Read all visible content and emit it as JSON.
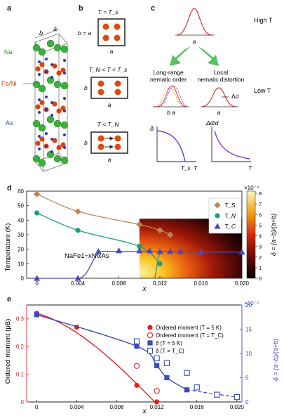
{
  "panel_labels": {
    "a": "a",
    "b": "b",
    "c": "c",
    "d": "d",
    "e": "e"
  },
  "panel_a": {
    "axis_labels": {
      "a": "a",
      "b": "b"
    },
    "atoms": [
      "Na",
      "Fe/Ni",
      "As"
    ],
    "colors": {
      "Na": "#3cb03c",
      "Fe/Ni": "#e04010",
      "As": "#2a3aa8"
    }
  },
  "panel_b": {
    "states": [
      {
        "label": "T > T_s",
        "left": "b = a",
        "bottom": "a"
      },
      {
        "label": "T_N < T < T_s",
        "left": "b",
        "bottom": "a"
      },
      {
        "label": "T < T_N",
        "left": "b",
        "bottom": "a"
      }
    ]
  },
  "panel_c": {
    "high_T": "High T",
    "low_T": "Low T",
    "a_label": "a",
    "left_title": "Long-range\nnematic order",
    "right_title": "Local\nnematic distortion",
    "ba_label": "b a",
    "delta_d": "Δd",
    "plot1_y": "δ",
    "plot1_x": "T",
    "plot1_mark": "T_s",
    "plot2_y": "Δd/d",
    "plot2_x": "T"
  },
  "chart_data": [
    {
      "type": "scatter",
      "title": "",
      "xlabel": "x",
      "ylabel": "Temperature (K)",
      "xlim": [
        -0.001,
        0.02
      ],
      "ylim": [
        0,
        60
      ],
      "xticks": [
        "0",
        "0.004",
        "0.008",
        "0.012",
        "0.016",
        "0.020"
      ],
      "yticks": [
        "0",
        "10",
        "20",
        "30",
        "40",
        "50",
        "60"
      ],
      "annotation": "NaFe1−xNixAs",
      "colorbar": {
        "label": "δ = (a−b)/(a+b)",
        "scale": "×10⁻⁴",
        "ticks": [
          "0",
          "1",
          "2",
          "3",
          "4",
          "5",
          "6",
          "7",
          "8"
        ]
      },
      "legend_position": "right",
      "series": [
        {
          "name": "T_S",
          "color": "#b8865a",
          "marker": "diamond",
          "x": [
            0,
            0.004,
            0.01,
            0.012,
            0.013
          ],
          "y": [
            58,
            46,
            37,
            33,
            30
          ]
        },
        {
          "name": "T_N",
          "color": "#1f9a8a",
          "marker": "circle",
          "x": [
            0,
            0.004,
            0.01,
            0.012
          ],
          "y": [
            45,
            33,
            22,
            10
          ]
        },
        {
          "name": "T_C",
          "color": "#4a4ab8",
          "marker": "triangle",
          "x": [
            0,
            0.004,
            0.006,
            0.008,
            0.01,
            0.011,
            0.012,
            0.013,
            0.014,
            0.016,
            0.02
          ],
          "y": [
            0,
            0,
            18.5,
            19,
            19,
            19,
            18.5,
            18.5,
            18.5,
            18,
            18
          ]
        }
      ]
    },
    {
      "type": "scatter",
      "title": "",
      "xlabel": "x",
      "ylabel": "Ordered moment (μB)",
      "ylabel_right": "δ = (a−b)/(a+b)",
      "right_scale": "×10⁻⁴",
      "xlim": [
        -0.001,
        0.0205
      ],
      "ylim": [
        0,
        0.35
      ],
      "ylim_right": [
        0,
        20
      ],
      "xticks": [
        "0",
        "0.004",
        "0.008",
        "0.012",
        "0.016",
        "0.020"
      ],
      "yticks": [
        "0",
        "0.1",
        "0.2",
        "0.3"
      ],
      "yticks_right": [
        "0",
        "5",
        "10",
        "15",
        "20"
      ],
      "legend_position": "top-right",
      "series": [
        {
          "name": "Ordered moment (T = 5 K)",
          "color": "#e02020",
          "marker": "circle",
          "axis": "left",
          "x": [
            0,
            0.004,
            0.01,
            0.012
          ],
          "y": [
            0.32,
            0.27,
            0.06,
            0.0
          ]
        },
        {
          "name": "Ordered moment (T = T_C)",
          "color": "#e02020",
          "marker": "circle-open",
          "axis": "left",
          "x": [
            0.01,
            0.012
          ],
          "y": [
            0.13,
            0.04
          ]
        },
        {
          "name": "δ (T = 5 K)",
          "color": "#3a4ab8",
          "marker": "square",
          "axis": "right",
          "x": [
            0,
            0.01,
            0.012,
            0.013,
            0.015,
            0.02
          ],
          "y": [
            18,
            11.5,
            7.5,
            5,
            2.5,
            1
          ]
        },
        {
          "name": "δ (T = T_C)",
          "color": "#3a4ab8",
          "marker": "square-open",
          "axis": "right",
          "x": [
            0.01,
            0.012,
            0.013,
            0.015,
            0.016,
            0.018,
            0.02
          ],
          "y": [
            12.5,
            9,
            8,
            6,
            3,
            1.5,
            1
          ]
        }
      ]
    }
  ]
}
